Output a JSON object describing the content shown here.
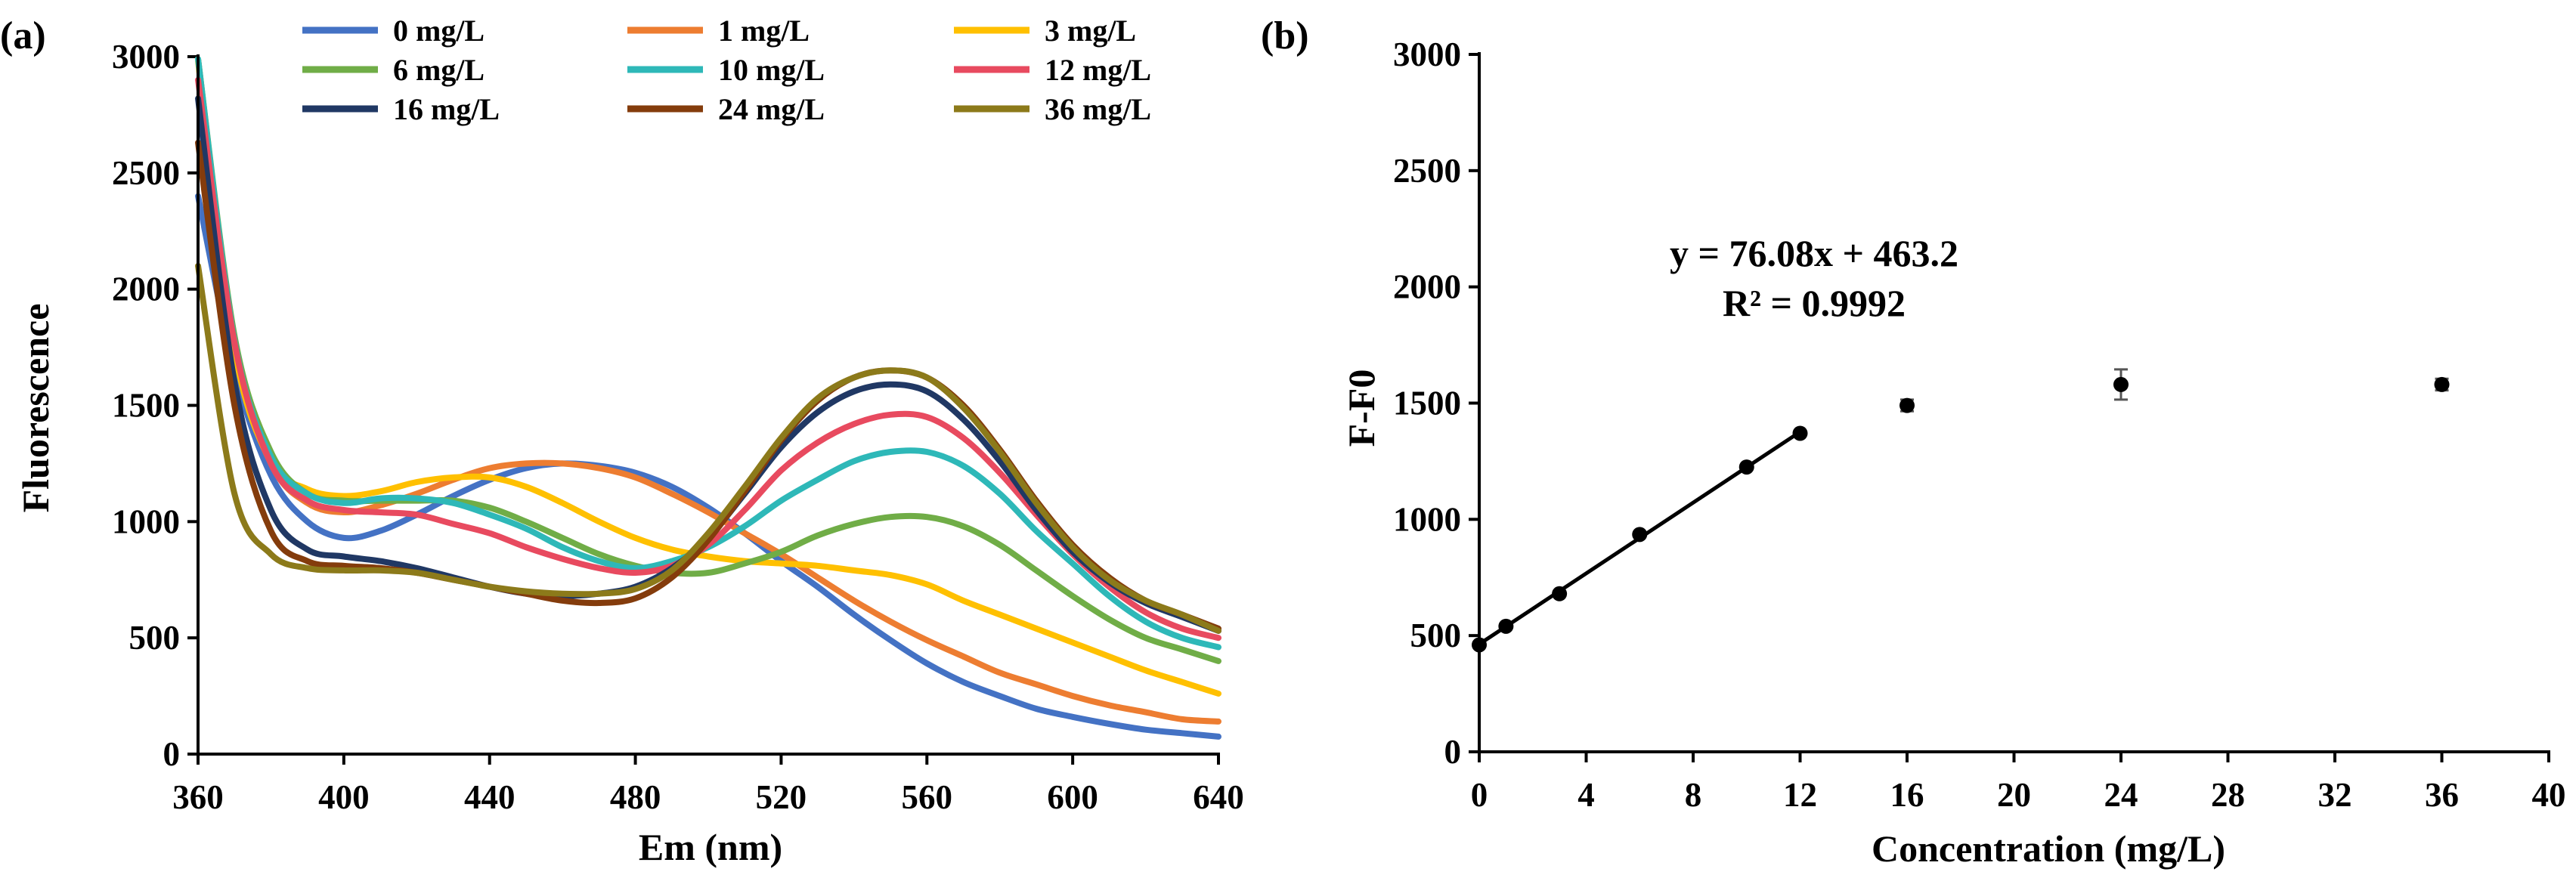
{
  "chart_data": [
    {
      "panel_label": "(a)",
      "type": "line",
      "xlabel": "Em (nm)",
      "ylabel": "Fluorescence",
      "xlim": [
        360,
        640
      ],
      "ylim": [
        0,
        3000
      ],
      "xticks": [
        360,
        400,
        440,
        480,
        520,
        560,
        600,
        640
      ],
      "yticks": [
        0,
        500,
        1000,
        1500,
        2000,
        2500,
        3000
      ],
      "x": [
        360,
        370,
        380,
        390,
        400,
        410,
        420,
        430,
        440,
        450,
        460,
        470,
        480,
        490,
        500,
        510,
        520,
        530,
        540,
        550,
        560,
        570,
        580,
        590,
        600,
        610,
        620,
        630,
        640
      ],
      "series": [
        {
          "name": "0 mg/L",
          "color": "#4472C4",
          "values": [
            2400,
            1650,
            1200,
            1000,
            930,
            960,
            1030,
            1110,
            1180,
            1230,
            1250,
            1240,
            1210,
            1150,
            1060,
            950,
            830,
            720,
            600,
            490,
            390,
            310,
            250,
            195,
            160,
            130,
            105,
            90,
            75
          ]
        },
        {
          "name": "1 mg/L",
          "color": "#ED7D31",
          "values": [
            2990,
            1750,
            1250,
            1080,
            1040,
            1070,
            1120,
            1180,
            1230,
            1250,
            1250,
            1230,
            1190,
            1120,
            1040,
            950,
            860,
            760,
            660,
            570,
            490,
            420,
            350,
            300,
            250,
            210,
            180,
            150,
            140
          ]
        },
        {
          "name": "3 mg/L",
          "color": "#FFC000",
          "values": [
            2980,
            1740,
            1260,
            1140,
            1110,
            1130,
            1170,
            1190,
            1190,
            1150,
            1080,
            1000,
            930,
            880,
            850,
            830,
            820,
            810,
            790,
            770,
            730,
            660,
            600,
            540,
            480,
            420,
            360,
            310,
            260
          ]
        },
        {
          "name": "6 mg/L",
          "color": "#70AD47",
          "values": [
            2990,
            1800,
            1300,
            1120,
            1090,
            1090,
            1090,
            1090,
            1060,
            1000,
            930,
            860,
            810,
            780,
            780,
            820,
            870,
            940,
            990,
            1020,
            1020,
            980,
            900,
            790,
            680,
            580,
            500,
            450,
            400
          ]
        },
        {
          "name": "10 mg/L",
          "color": "#2EB8B8",
          "values": [
            2990,
            1780,
            1280,
            1120,
            1080,
            1100,
            1100,
            1080,
            1030,
            970,
            890,
            830,
            800,
            830,
            890,
            980,
            1090,
            1180,
            1260,
            1300,
            1300,
            1240,
            1120,
            960,
            820,
            680,
            570,
            500,
            460
          ]
        },
        {
          "name": "12 mg/L",
          "color": "#E84A5F",
          "values": [
            2900,
            1770,
            1250,
            1090,
            1050,
            1040,
            1030,
            990,
            950,
            890,
            840,
            800,
            780,
            810,
            900,
            1050,
            1220,
            1340,
            1420,
            1460,
            1450,
            1360,
            1210,
            1030,
            860,
            720,
            610,
            540,
            500
          ]
        },
        {
          "name": "16 mg/L",
          "color": "#203864",
          "values": [
            2820,
            1600,
            1050,
            880,
            850,
            830,
            800,
            760,
            720,
            690,
            680,
            690,
            720,
            800,
            930,
            1120,
            1320,
            1470,
            1560,
            1590,
            1560,
            1440,
            1260,
            1050,
            870,
            740,
            650,
            590,
            530
          ]
        },
        {
          "name": "24 mg/L",
          "color": "#843C0C",
          "values": [
            2630,
            1500,
            960,
            830,
            810,
            800,
            780,
            750,
            720,
            690,
            660,
            650,
            670,
            760,
            920,
            1130,
            1350,
            1520,
            1620,
            1650,
            1620,
            1500,
            1310,
            1090,
            900,
            760,
            660,
            600,
            540
          ]
        },
        {
          "name": "36 mg/L",
          "color": "#8C7A1A",
          "values": [
            2100,
            1120,
            860,
            800,
            790,
            790,
            780,
            750,
            720,
            700,
            690,
            690,
            710,
            790,
            950,
            1150,
            1360,
            1530,
            1620,
            1650,
            1620,
            1490,
            1300,
            1080,
            890,
            750,
            660,
            600,
            530
          ]
        }
      ]
    },
    {
      "panel_label": "(b)",
      "type": "scatter",
      "xlabel": "Concentration (mg/L)",
      "ylabel": "F-F0",
      "xlim": [
        0,
        40
      ],
      "ylim": [
        0,
        3000
      ],
      "xticks": [
        0,
        4,
        8,
        12,
        16,
        20,
        24,
        28,
        32,
        36,
        40
      ],
      "yticks": [
        0,
        500,
        1000,
        1500,
        2000,
        2500,
        3000
      ],
      "points": [
        {
          "x": 0,
          "y": 460,
          "err": 8
        },
        {
          "x": 1,
          "y": 540,
          "err": 8
        },
        {
          "x": 3,
          "y": 680,
          "err": 8
        },
        {
          "x": 6,
          "y": 935,
          "err": 8
        },
        {
          "x": 10,
          "y": 1225,
          "err": 8
        },
        {
          "x": 12,
          "y": 1370,
          "err": 8
        },
        {
          "x": 16,
          "y": 1490,
          "err": 25
        },
        {
          "x": 24,
          "y": 1580,
          "err": 65
        },
        {
          "x": 36,
          "y": 1580,
          "err": 25
        }
      ],
      "fit": {
        "slope": 76.08,
        "intercept": 463.2,
        "x_range": [
          0,
          12
        ]
      },
      "equation": "y = 76.08x + 463.2",
      "r2_text": "R² = 0.9992"
    }
  ]
}
